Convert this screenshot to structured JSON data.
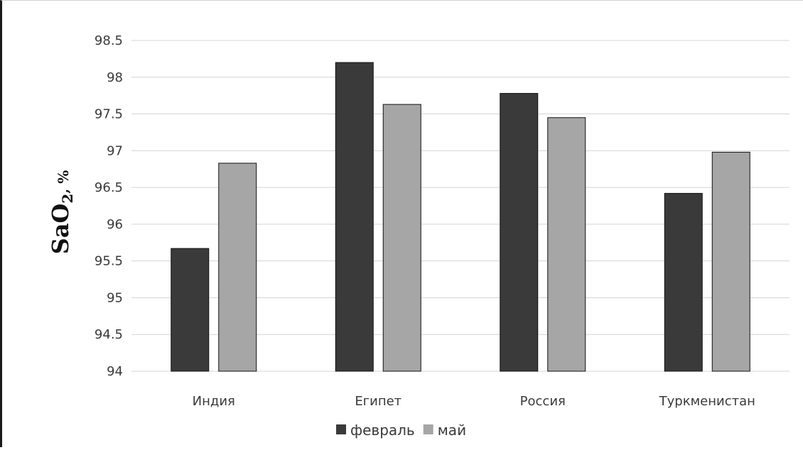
{
  "chart_data": {
    "type": "bar",
    "ylabel": "SaO2, %",
    "ylabel_main": "SaO",
    "ylabel_sub": "2",
    "ylabel_unit": ", %",
    "ylim": [
      94,
      98.5
    ],
    "yticks": [
      94,
      94.5,
      95,
      95.5,
      96,
      96.5,
      97,
      97.5,
      98,
      98.5
    ],
    "grid": true,
    "legend_position": "bottom",
    "categories": [
      "Индия",
      "Египет",
      "Россия",
      "Туркменистан"
    ],
    "series": [
      {
        "name": "февраль",
        "color": "#3a3a3a",
        "values": [
          95.67,
          98.2,
          97.78,
          96.42
        ]
      },
      {
        "name": "май",
        "color": "#a6a6a6",
        "values": [
          96.83,
          97.63,
          97.45,
          96.98
        ]
      }
    ]
  }
}
